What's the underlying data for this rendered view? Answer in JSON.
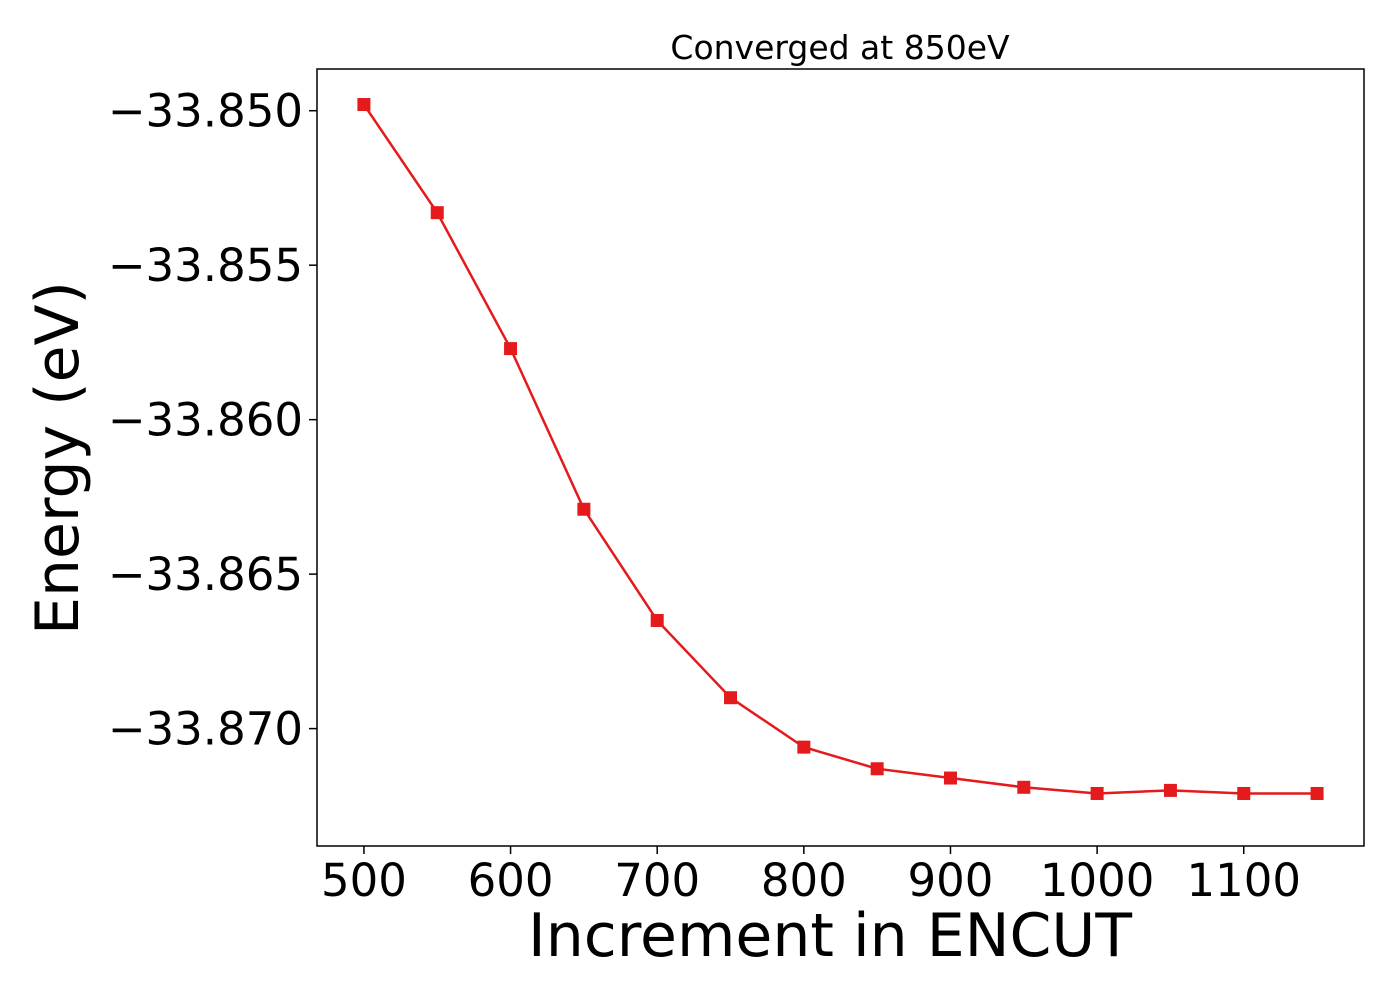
{
  "chart_data": {
    "type": "line",
    "title": "Converged at 850eV",
    "xlabel": "Increment in ENCUT",
    "ylabel": "Energy (eV)",
    "xlim": [
      468,
      1182
    ],
    "ylim": [
      -33.8738,
      -33.84865
    ],
    "x_ticks": [
      500,
      600,
      700,
      800,
      900,
      1000,
      1100
    ],
    "x_tick_labels": [
      "500",
      "600",
      "700",
      "800",
      "900",
      "1000",
      "1100"
    ],
    "y_ticks": [
      -33.85,
      -33.855,
      -33.86,
      -33.865,
      -33.87
    ],
    "y_tick_labels": [
      "−33.850",
      "−33.855",
      "−33.860",
      "−33.865",
      "−33.870"
    ],
    "grid": false,
    "color": "#e41a1c",
    "marker": "square",
    "series": [
      {
        "x": [
          500,
          550,
          600,
          650,
          700,
          750,
          800,
          850,
          900,
          950,
          1000,
          1050,
          1100,
          1150
        ],
        "y": [
          -33.8498,
          -33.8533,
          -33.8577,
          -33.8629,
          -33.8665,
          -33.869,
          -33.8706,
          -33.8713,
          -33.8716,
          -33.8719,
          -33.8721,
          -33.872,
          -33.8721,
          -33.8721
        ]
      }
    ]
  }
}
